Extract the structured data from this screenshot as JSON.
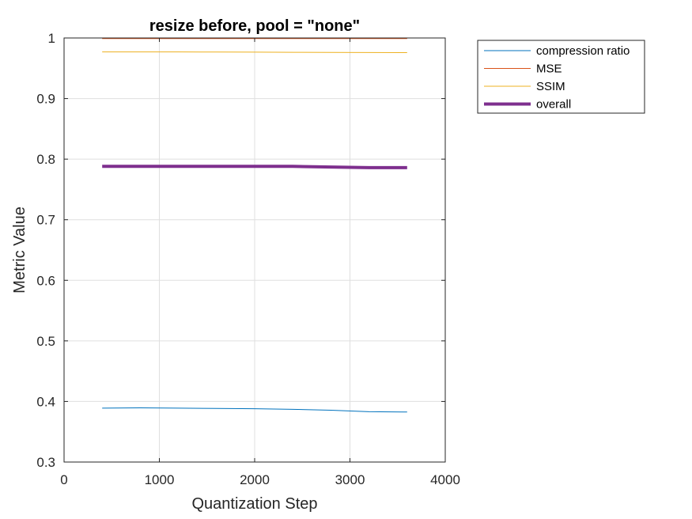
{
  "chart_data": {
    "type": "line",
    "title": "resize before, pool = \"none\"",
    "xlabel": "Quantization Step",
    "ylabel": "Metric Value",
    "xlim": [
      0,
      4000
    ],
    "ylim": [
      0.3,
      1
    ],
    "xticks": [
      0,
      1000,
      2000,
      3000,
      4000
    ],
    "yticks": [
      0.3,
      0.4,
      0.5,
      0.6,
      0.7,
      0.8,
      0.9,
      1
    ],
    "xtick_labels": [
      "0",
      "1000",
      "2000",
      "3000",
      "4000"
    ],
    "ytick_labels": [
      "0.3",
      "0.4",
      "0.5",
      "0.6",
      "0.7",
      "0.8",
      "0.9",
      "1"
    ],
    "grid": true,
    "legend_position": "outside-top-right",
    "x": [
      400,
      800,
      1200,
      1600,
      2000,
      2400,
      2800,
      3200,
      3600
    ],
    "series": [
      {
        "name": "compression ratio",
        "color": "#0072BD",
        "width": 1,
        "values": [
          0.389,
          0.3895,
          0.389,
          0.3885,
          0.388,
          0.387,
          0.3855,
          0.383,
          0.3825
        ]
      },
      {
        "name": "MSE",
        "color": "#D95319",
        "width": 1,
        "values": [
          0.999,
          0.999,
          0.999,
          0.999,
          0.999,
          0.999,
          0.999,
          0.999,
          0.999
        ]
      },
      {
        "name": "SSIM",
        "color": "#EDB120",
        "width": 1,
        "values": [
          0.977,
          0.977,
          0.977,
          0.9768,
          0.9766,
          0.9764,
          0.9762,
          0.976,
          0.9758
        ]
      },
      {
        "name": "overall",
        "color": "#7E2F8E",
        "width": 4,
        "values": [
          0.788,
          0.788,
          0.788,
          0.788,
          0.788,
          0.788,
          0.787,
          0.786,
          0.786
        ]
      }
    ]
  }
}
